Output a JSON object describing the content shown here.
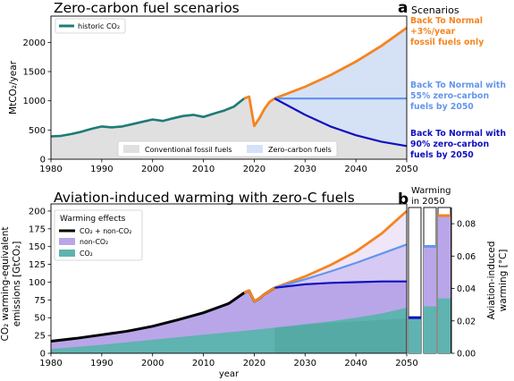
{
  "colors": {
    "historic": "#1e7b76",
    "orange": "#f5841f",
    "light_blue": "#6495ed",
    "dark_blue": "#1010c0",
    "conventional_fill": "#e0e0e0",
    "zero_c_fill": "#d5e1f5",
    "co2_fill": "#5fb3b0",
    "nonco2_fill": "#b9a6e8",
    "nonco2_light": "#d6c9f3",
    "black_line": "#000000",
    "frame": "#000000"
  },
  "chart_data": [
    {
      "type": "area",
      "panel_label": "",
      "title": "Zero-carbon fuel scenarios",
      "xlabel": "",
      "ylabel": "MtCO₂/year",
      "xlim": [
        1980,
        2050
      ],
      "ylim": [
        0,
        2450
      ],
      "xticks": [
        "1980",
        "1990",
        "2000",
        "2010",
        "2020",
        "2030",
        "2040",
        "2050"
      ],
      "yticks": [
        "0",
        "500",
        "1000",
        "1500",
        "2000"
      ],
      "legend_top": "historic CO₂",
      "legend_bottom": [
        "Conventional fossil fuels",
        "Zero-carbon fuels"
      ],
      "scenarios_title": "Scenarios",
      "historic": {
        "x": [
          1980,
          1982,
          1984,
          1986,
          1988,
          1990,
          1992,
          1994,
          1996,
          1998,
          2000,
          2002,
          2004,
          2006,
          2008,
          2010,
          2012,
          2014,
          2016,
          2018
        ],
        "y": [
          390,
          400,
          430,
          470,
          520,
          560,
          545,
          560,
          600,
          640,
          680,
          655,
          700,
          740,
          760,
          725,
          780,
          830,
          900,
          1040
        ]
      },
      "scenarios": [
        {
          "name_lines": [
            "Back To Normal",
            "+3%/year",
            "fossil fuels only"
          ],
          "color_key": "orange",
          "x": [
            2018,
            2019,
            2020,
            2021,
            2022,
            2023,
            2024,
            2030,
            2035,
            2040,
            2045,
            2050
          ],
          "y": [
            1040,
            1070,
            570,
            700,
            860,
            980,
            1040,
            1240,
            1440,
            1670,
            1940,
            2250
          ]
        },
        {
          "name_lines": [
            "Back To Normal with",
            "55% zero-carbon",
            "fuels by 2050"
          ],
          "color_key": "light_blue",
          "x": [
            2024,
            2050
          ],
          "y": [
            1040,
            1040
          ]
        },
        {
          "name_lines": [
            "Back To Normal with",
            "90% zero-carbon",
            "fuels by 2050"
          ],
          "color_key": "dark_blue",
          "x": [
            2024,
            2030,
            2035,
            2040,
            2045,
            2050
          ],
          "y": [
            1040,
            760,
            560,
            410,
            300,
            225
          ]
        }
      ]
    },
    {
      "type": "area",
      "panel_label": "",
      "title": "Aviation-induced warming with zero-C fuels",
      "xlabel": "year",
      "ylabel_lines": [
        "CO₂ warming-equivalent",
        "emissions [GtCO₂]"
      ],
      "ylabel_right_lines": [
        "Aviation-induced",
        "warming [°C]"
      ],
      "xlim": [
        1980,
        2050
      ],
      "ylim": [
        0,
        210
      ],
      "xticks": [
        "1980",
        "1990",
        "2000",
        "2010",
        "2020",
        "2030",
        "2040",
        "2050"
      ],
      "yticks": [
        "0",
        "25",
        "50",
        "75",
        "100",
        "125",
        "150",
        "175",
        "200"
      ],
      "right_ylim": [
        0,
        0.09
      ],
      "right_yticks": [
        "0.00",
        "0.02",
        "0.04",
        "0.06",
        "0.08"
      ],
      "legend_title": "Warming effects",
      "legend_items": [
        "CO₂ + non-CO₂",
        "non-CO₂",
        "CO₂"
      ],
      "inset_title_lines": [
        "Warming",
        "in 2050"
      ],
      "total": {
        "x": [
          1980,
          1985,
          1990,
          1995,
          2000,
          2005,
          2010,
          2015,
          2018,
          2019,
          2020,
          2021,
          2022,
          2024
        ],
        "y": [
          17,
          21,
          26,
          31,
          38,
          47,
          57,
          70,
          85,
          88,
          73,
          77,
          83,
          92
        ]
      },
      "co2_line": {
        "x": [
          1980,
          1990,
          2000,
          2010,
          2020,
          2024
        ],
        "y": [
          6,
          12,
          19,
          26,
          33,
          36
        ]
      },
      "scenarios": [
        {
          "color_key": "orange",
          "x": [
            2024,
            2030,
            2035,
            2040,
            2045,
            2050
          ],
          "total": [
            92,
            108,
            124,
            143,
            168,
            200
          ],
          "co2": [
            36,
            41,
            45,
            50,
            56,
            64
          ]
        },
        {
          "color_key": "light_blue",
          "x": [
            2024,
            2030,
            2035,
            2040,
            2045,
            2050
          ],
          "total": [
            92,
            104,
            115,
            127,
            140,
            153
          ],
          "co2": [
            36,
            41,
            44,
            48,
            52,
            56
          ]
        },
        {
          "color_key": "dark_blue",
          "x": [
            2024,
            2030,
            2035,
            2040,
            2045,
            2050
          ],
          "total": [
            92,
            97,
            99,
            100,
            101,
            101
          ],
          "co2": [
            36,
            40,
            43,
            45,
            47,
            49
          ]
        }
      ],
      "inset_bars": [
        {
          "color_key": "dark_blue",
          "co2": 0.022,
          "nonco2": 0.0,
          "total": 0.022
        },
        {
          "color_key": "light_blue",
          "co2": 0.029,
          "nonco2": 0.037,
          "total": 0.066
        },
        {
          "color_key": "orange",
          "co2": 0.034,
          "nonco2": 0.051,
          "total": 0.085
        }
      ]
    }
  ],
  "panel_letters": [
    "a",
    "b"
  ]
}
